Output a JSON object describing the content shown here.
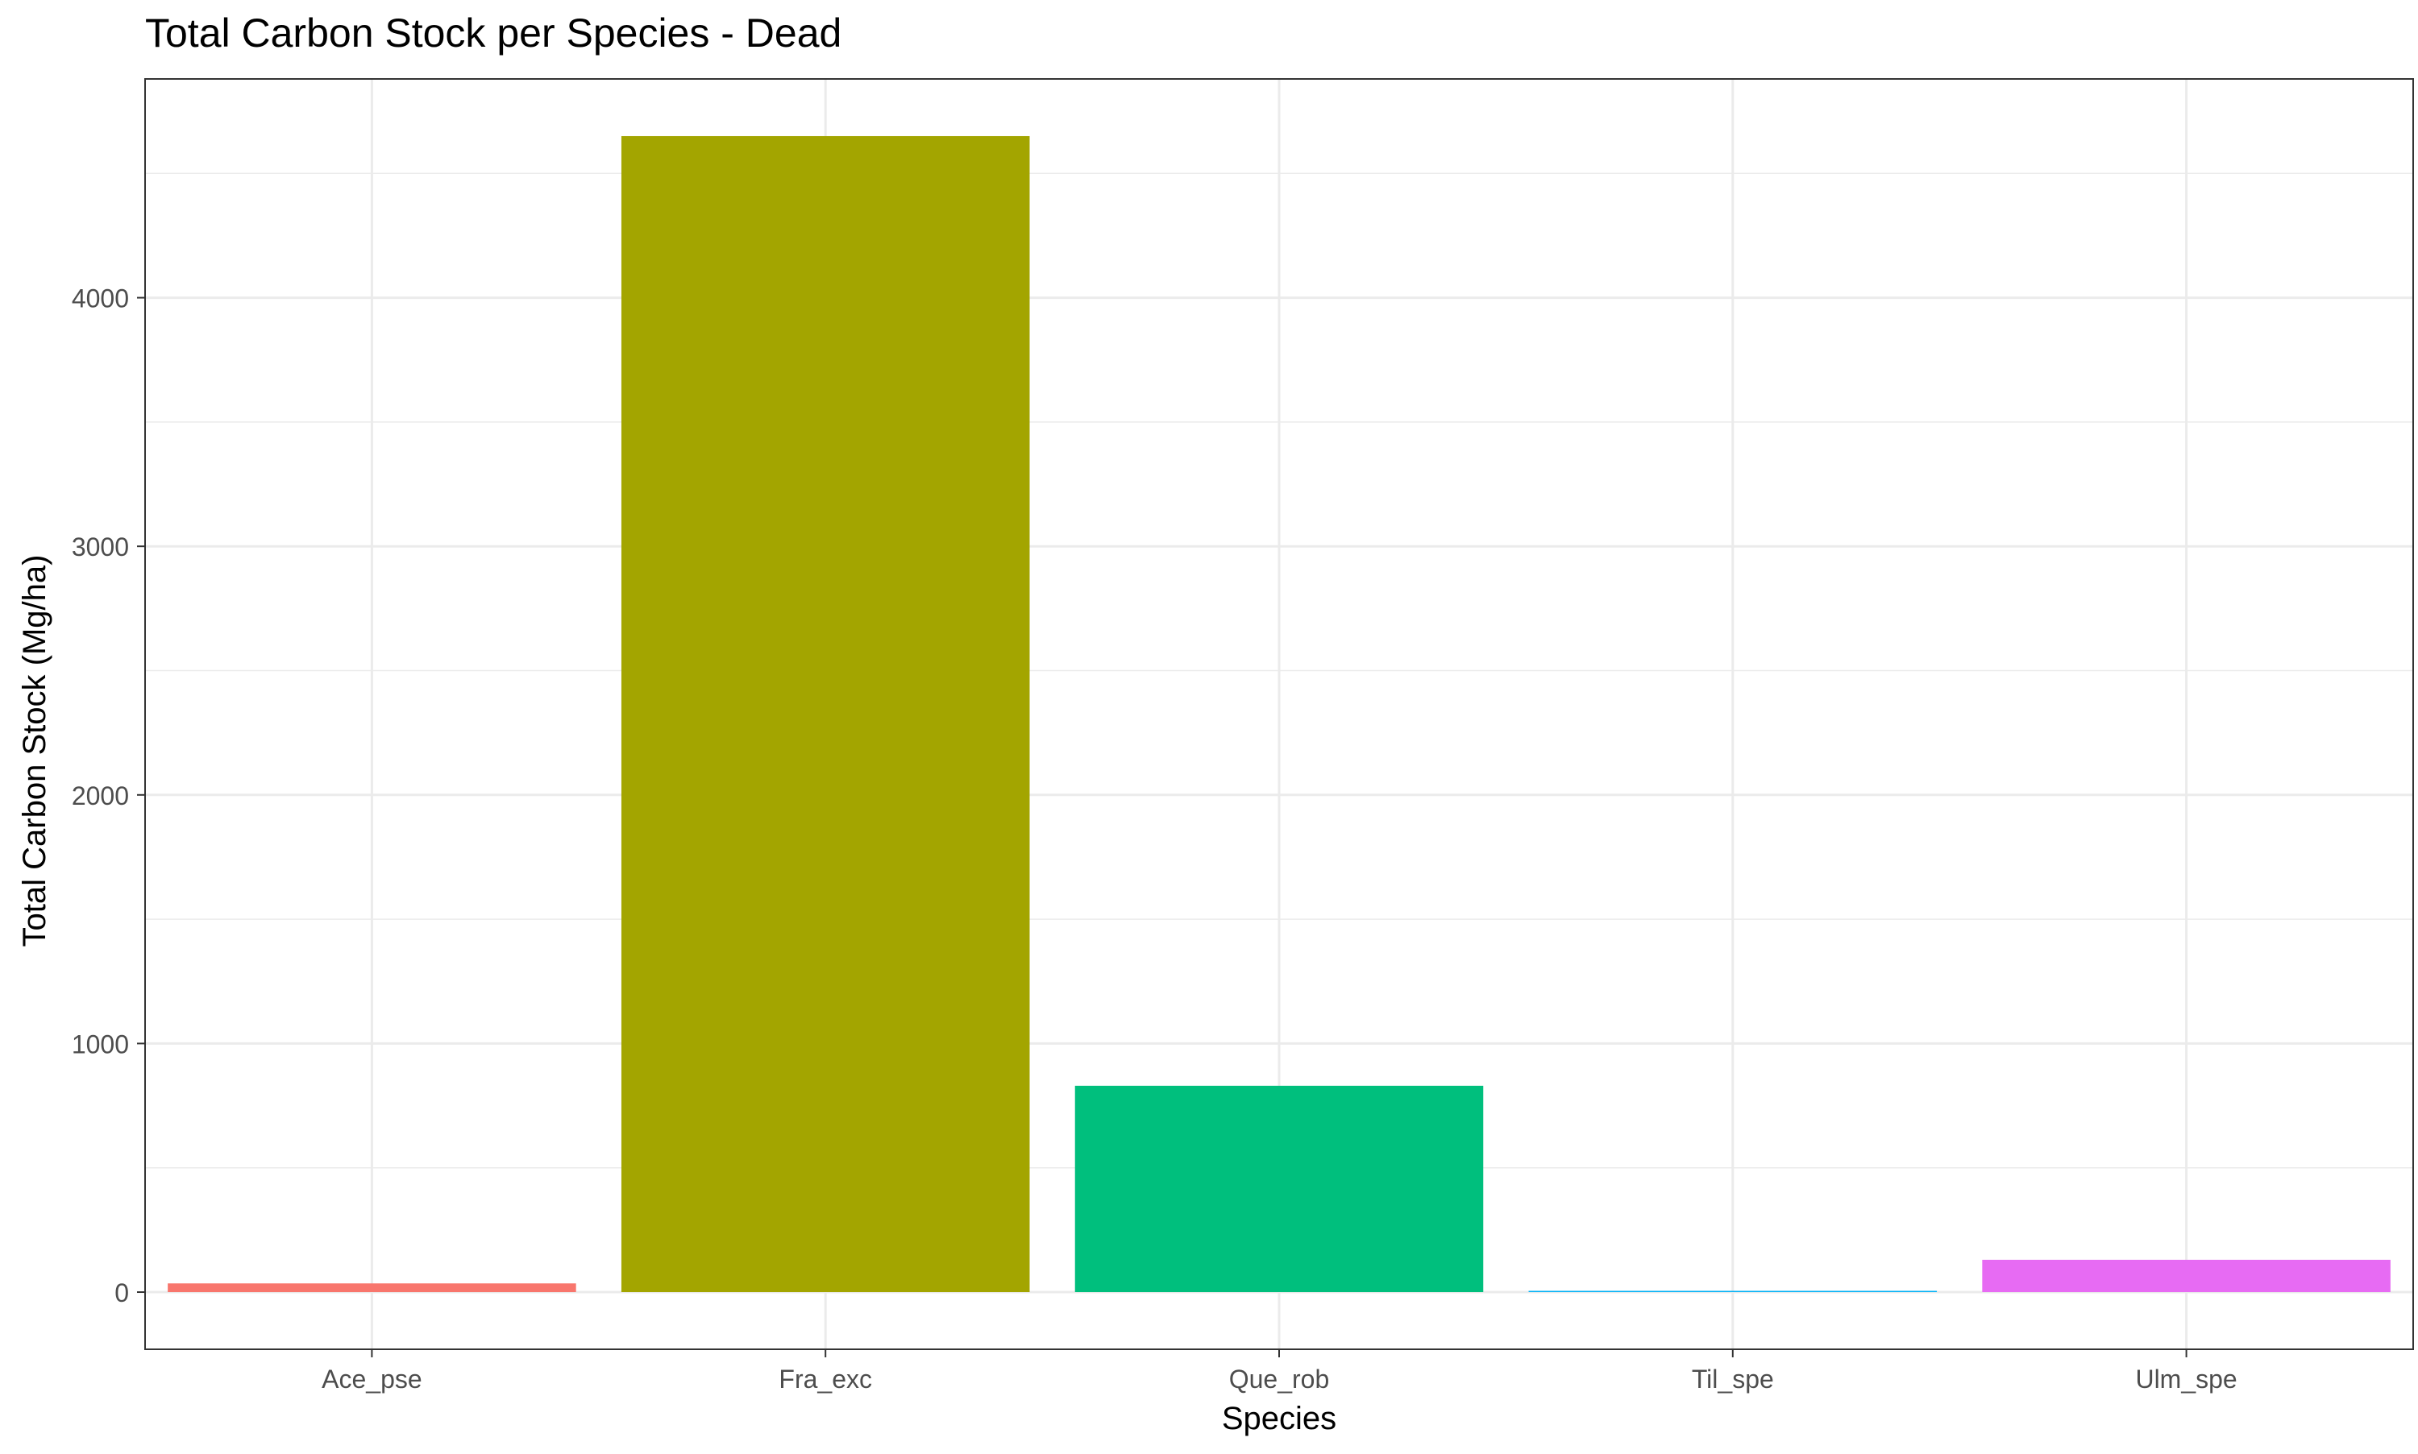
{
  "chart_data": {
    "type": "bar",
    "title": "Total Carbon Stock per Species - Dead",
    "xlabel": "Species",
    "ylabel": "Total Carbon Stock (Mg/ha)",
    "categories": [
      "Ace_pse",
      "Fra_exc",
      "Que_rob",
      "Til_spe",
      "Ulm_spe"
    ],
    "values": [
      35,
      4650,
      830,
      5,
      130
    ],
    "colors": [
      "#F8766D",
      "#A3A500",
      "#00BF7D",
      "#00B0F6",
      "#E76BF3"
    ],
    "ylim": [
      -230,
      4880
    ],
    "yticks": [
      0,
      1000,
      2000,
      3000,
      4000
    ],
    "ytick_labels": [
      "0",
      "1000",
      "2000",
      "3000",
      "4000"
    ],
    "grid": true,
    "legend": "none"
  }
}
